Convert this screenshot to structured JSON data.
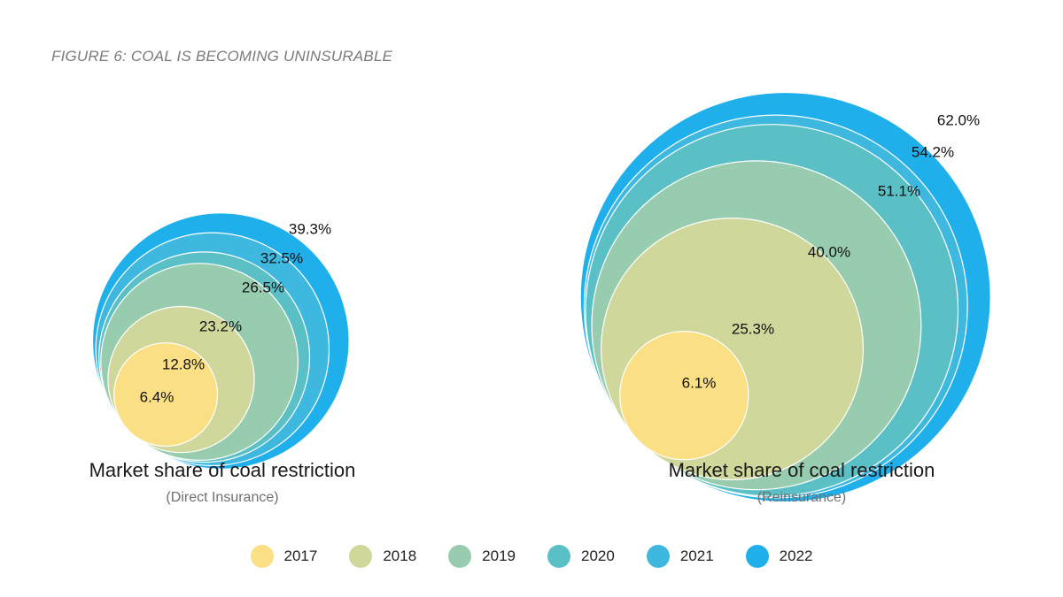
{
  "figure_title": "FIGURE 6: COAL IS BECOMING UNINSURABLE",
  "colors": {
    "2017": "#fbdf84",
    "2018": "#d0d79b",
    "2019": "#97ccae",
    "2020": "#5ac0c6",
    "2021": "#3fb8e0",
    "2022": "#1fb0ec"
  },
  "chart_data": [
    {
      "type": "nested-bubble",
      "title": "Market share of coal restriction",
      "subtitle": "(Direct Insurance)",
      "series": [
        {
          "name": "2017",
          "value": 6.4,
          "label": "6.4%"
        },
        {
          "name": "2018",
          "value": 12.8,
          "label": "12.8%"
        },
        {
          "name": "2019",
          "value": 23.2,
          "label": "23.2%"
        },
        {
          "name": "2020",
          "value": 26.5,
          "label": "26.5%"
        },
        {
          "name": "2021",
          "value": 32.5,
          "label": "32.5%"
        },
        {
          "name": "2022",
          "value": 39.3,
          "label": "39.3%"
        }
      ]
    },
    {
      "type": "nested-bubble",
      "title": "Market share of coal restriction",
      "subtitle": "(Reinsurance)",
      "series": [
        {
          "name": "2017",
          "value": 6.1,
          "label": "6.1%"
        },
        {
          "name": "2018",
          "value": 25.3,
          "label": "25.3%"
        },
        {
          "name": "2019",
          "value": 40.0,
          "label": "40.0%"
        },
        {
          "name": "2020",
          "value": 51.1,
          "label": "51.1%"
        },
        {
          "name": "2021",
          "value": 54.2,
          "label": "54.2%"
        },
        {
          "name": "2022",
          "value": 62.0,
          "label": "62.0%"
        }
      ]
    }
  ],
  "legend": [
    "2017",
    "2018",
    "2019",
    "2020",
    "2021",
    "2022"
  ]
}
